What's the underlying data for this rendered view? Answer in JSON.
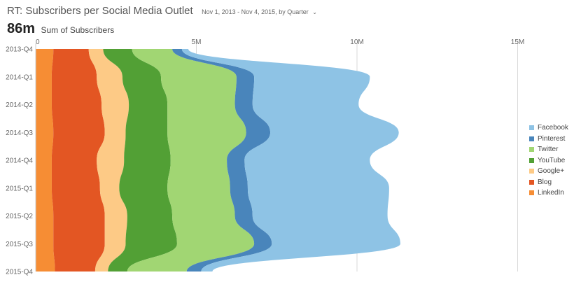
{
  "header": {
    "title": "RT: Subscribers per Social Media Outlet",
    "date_range": "Nov 1, 2013 - Nov 4, 2015, by Quarter",
    "chevron": "⌄"
  },
  "metric": {
    "value": "86m",
    "label": "Sum of Subscribers"
  },
  "chart_data": {
    "type": "area",
    "stacked": true,
    "orientation": "vertical-time",
    "x_categories": [
      "2013-Q4",
      "2014-Q1",
      "2014-Q2",
      "2014-Q3",
      "2014-Q4",
      "2015-Q1",
      "2015-Q2",
      "2015-Q3",
      "2015-Q4"
    ],
    "value_axis": {
      "ticks": [
        0,
        5000000,
        10000000,
        15000000
      ],
      "tick_labels": [
        "0",
        "5M",
        "10M",
        "15M"
      ],
      "range": [
        0,
        16000000
      ]
    },
    "legend_position": "right",
    "series": [
      {
        "name": "LinkedIn",
        "color": "#f68d34",
        "values": [
          0.55,
          0.5,
          0.5,
          0.55,
          0.5,
          0.5,
          0.55,
          0.55,
          0.6
        ]
      },
      {
        "name": "Blog",
        "color": "#e35623",
        "values": [
          1.1,
          1.4,
          1.55,
          1.6,
          1.4,
          1.5,
          1.6,
          1.6,
          1.25
        ]
      },
      {
        "name": "Google+",
        "color": "#fdca86",
        "values": [
          0.45,
          0.8,
          0.85,
          0.65,
          0.85,
          0.6,
          0.7,
          0.65,
          0.4
        ]
      },
      {
        "name": "YouTube",
        "color": "#52a035",
        "values": [
          0.9,
          1.2,
          1.2,
          1.3,
          1.45,
          1.5,
          1.4,
          1.6,
          0.6
        ]
      },
      {
        "name": "Twitter",
        "color": "#a1d673",
        "values": [
          1.25,
          2.35,
          2.1,
          2.45,
          1.75,
          1.95,
          1.95,
          2.4,
          1.85
        ]
      },
      {
        "name": "Pinterest",
        "color": "#4985bb",
        "values": [
          0.3,
          0.55,
          0.55,
          0.75,
          0.55,
          0.55,
          0.55,
          0.55,
          0.45
        ]
      },
      {
        "name": "Facebook",
        "color": "#8ec3e5",
        "values": [
          0.2,
          3.6,
          3.3,
          4.0,
          3.9,
          4.4,
          4.2,
          4.0,
          0.35
        ]
      }
    ],
    "value_unit": "millions"
  }
}
